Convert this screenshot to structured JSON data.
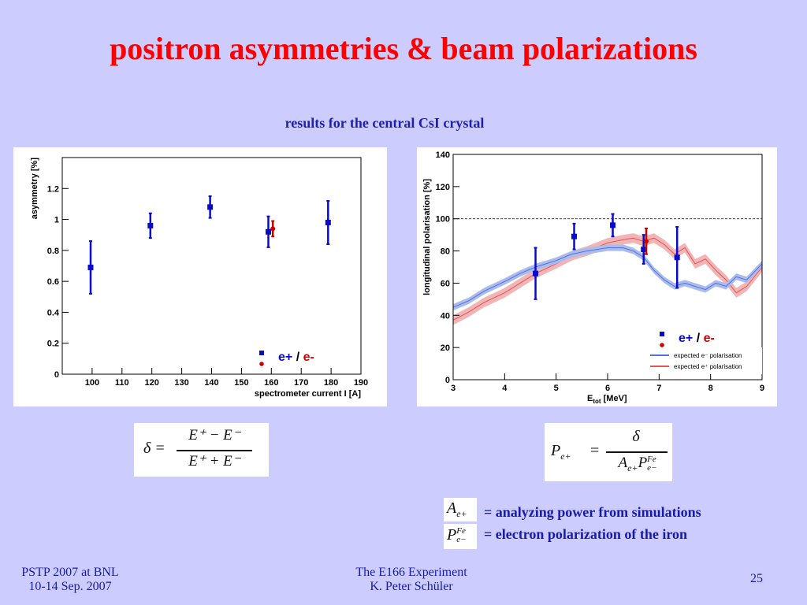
{
  "slide": {
    "title": "positron asymmetries & beam polarizations",
    "subtitle": "results for the central CsI crystal",
    "formula_delta": {
      "lhs": "δ =",
      "numerator": "E⁺ − E⁻",
      "denominator": "E⁺ + E⁻"
    },
    "formula_p": {
      "lhs": "P",
      "lhs_sub": "e+",
      "eq": "=",
      "numerator": "δ",
      "den_a": "A",
      "den_a_sub": "e+",
      "den_p": "P",
      "den_p_sup": "Fe",
      "den_p_sub": "e−"
    },
    "note1_symbol": {
      "main": "A",
      "sub": "e+"
    },
    "note2_symbol": {
      "main": "P",
      "sup": "Fe",
      "sub": "e−"
    },
    "note1": "= analyzing power from simulations",
    "note2": "= electron polarization of the iron",
    "footer_left_1": "PSTP 2007 at BNL",
    "footer_left_2": "10-14 Sep. 2007",
    "footer_center_1": "The E166 Experiment",
    "footer_center_2": "K. Peter Schüler",
    "page_number": "25"
  },
  "colors": {
    "blue": "#0a0acc",
    "red": "#cc0000",
    "title": "#ff0000",
    "text": "#1a1aa8",
    "band_blue": "#aabbee",
    "band_red": "#f2b5b5"
  },
  "chart_data": [
    {
      "type": "scatter",
      "xlabel": "spectrometer current I [A]",
      "ylabel": "asymmetry [%]",
      "xlim": [
        90,
        190
      ],
      "ylim": [
        0,
        1.4
      ],
      "xticks": [
        100,
        110,
        120,
        130,
        140,
        150,
        160,
        170,
        180,
        190
      ],
      "yticks": [
        0,
        0.2,
        0.4,
        0.6,
        0.8,
        1,
        1.2
      ],
      "ytick_labels": [
        "0",
        "0.2",
        "0.4",
        "0.6",
        "0.8",
        "1",
        "1.2"
      ],
      "legend_label_pos": "e+",
      "legend_label_sep": "/",
      "legend_label_neg": "e-",
      "series": [
        {
          "color": "blue",
          "points": [
            {
              "x": 99.5,
              "y": 0.69,
              "err": 0.17
            },
            {
              "x": 119.5,
              "y": 0.96,
              "err": 0.08
            },
            {
              "x": 139.5,
              "y": 1.08,
              "err": 0.07
            },
            {
              "x": 159.0,
              "y": 0.92,
              "err": 0.1
            },
            {
              "x": 179.0,
              "y": 0.98,
              "err": 0.14
            }
          ]
        },
        {
          "color": "red",
          "points": [
            {
              "x": 160.5,
              "y": 0.94,
              "err": 0.05
            }
          ]
        }
      ]
    },
    {
      "type": "line",
      "xlabel": "E",
      "xlabel_sub": "tot",
      "xlabel_unit": " [MeV]",
      "ylabel": "longitudinal polarisation [%]",
      "xlim": [
        3,
        9
      ],
      "ylim": [
        0,
        140
      ],
      "xticks": [
        3,
        4,
        5,
        6,
        7,
        8,
        9
      ],
      "yticks": [
        0,
        20,
        40,
        60,
        80,
        100,
        120,
        140
      ],
      "reference_line": 100,
      "legend_label_pos": "e+",
      "legend_label_sep": "/",
      "legend_label_neg": "e-",
      "legend_band_blue": "expected e⁻ polarisation",
      "legend_band_red": "expected e⁺ polarisation",
      "band_blue": {
        "x": [
          3,
          3.3,
          3.6,
          4,
          4.3,
          4.6,
          5,
          5.3,
          5.6,
          6,
          6.3,
          6.5,
          6.7,
          6.9,
          7.1,
          7.3,
          7.5,
          7.7,
          7.9,
          8.1,
          8.3,
          8.5,
          8.7,
          9
        ],
        "y": [
          45,
          49,
          55,
          61,
          66,
          70,
          74,
          78,
          80,
          82,
          82,
          80,
          76,
          68,
          62,
          58,
          60,
          58,
          56,
          60,
          58,
          64,
          62,
          72
        ],
        "half_width": 2
      },
      "band_red": {
        "x": [
          3,
          3.3,
          3.6,
          4,
          4.3,
          4.6,
          5,
          5.3,
          5.6,
          6,
          6.3,
          6.5,
          6.7,
          6.9,
          7.1,
          7.3,
          7.5,
          7.7,
          7.9,
          8.1,
          8.3,
          8.5,
          8.7,
          9
        ],
        "y": [
          37,
          42,
          48,
          54,
          60,
          66,
          72,
          77,
          80,
          85,
          87,
          88,
          86,
          88,
          84,
          78,
          82,
          72,
          75,
          68,
          62,
          54,
          58,
          70
        ],
        "half_width": 3
      },
      "series": [
        {
          "color": "blue",
          "points": [
            {
              "x": 4.6,
              "y": 66,
              "err": 16
            },
            {
              "x": 5.35,
              "y": 89,
              "err": 8
            },
            {
              "x": 6.1,
              "y": 96,
              "err": 7
            },
            {
              "x": 6.7,
              "y": 81,
              "err": 9
            },
            {
              "x": 7.35,
              "y": 76,
              "err": 19
            }
          ]
        },
        {
          "color": "red",
          "points": [
            {
              "x": 6.75,
              "y": 86,
              "err": 8
            }
          ]
        }
      ]
    }
  ]
}
